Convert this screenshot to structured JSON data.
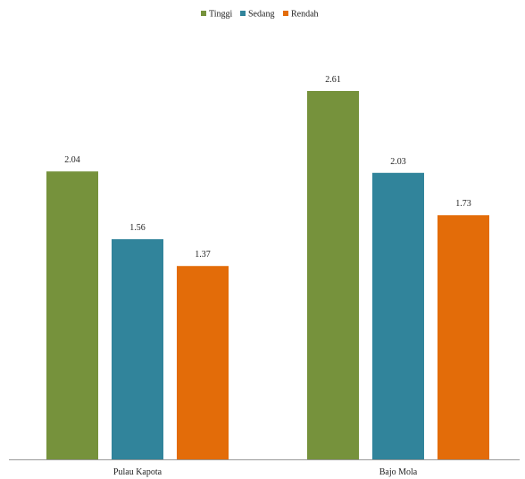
{
  "chart_data": {
    "type": "bar",
    "title": "",
    "xlabel": "",
    "ylabel": "",
    "categories": [
      "Pulau Kapota",
      "Bajo Mola"
    ],
    "series": [
      {
        "name": "Tinggi",
        "color": "#76923c",
        "values": [
          2.04,
          2.61
        ]
      },
      {
        "name": "Sedang",
        "color": "#31849b",
        "values": [
          1.56,
          2.03
        ]
      },
      {
        "name": "Rendah",
        "color": "#e36c09",
        "values": [
          1.37,
          1.73
        ]
      }
    ],
    "value_labels": [
      [
        "2.04",
        "2.61"
      ],
      [
        "1.56",
        "2.03"
      ],
      [
        "1.37",
        "1.73"
      ]
    ],
    "ylim": [
      0,
      2.61
    ],
    "grid": false,
    "legend_position": "top-center"
  }
}
